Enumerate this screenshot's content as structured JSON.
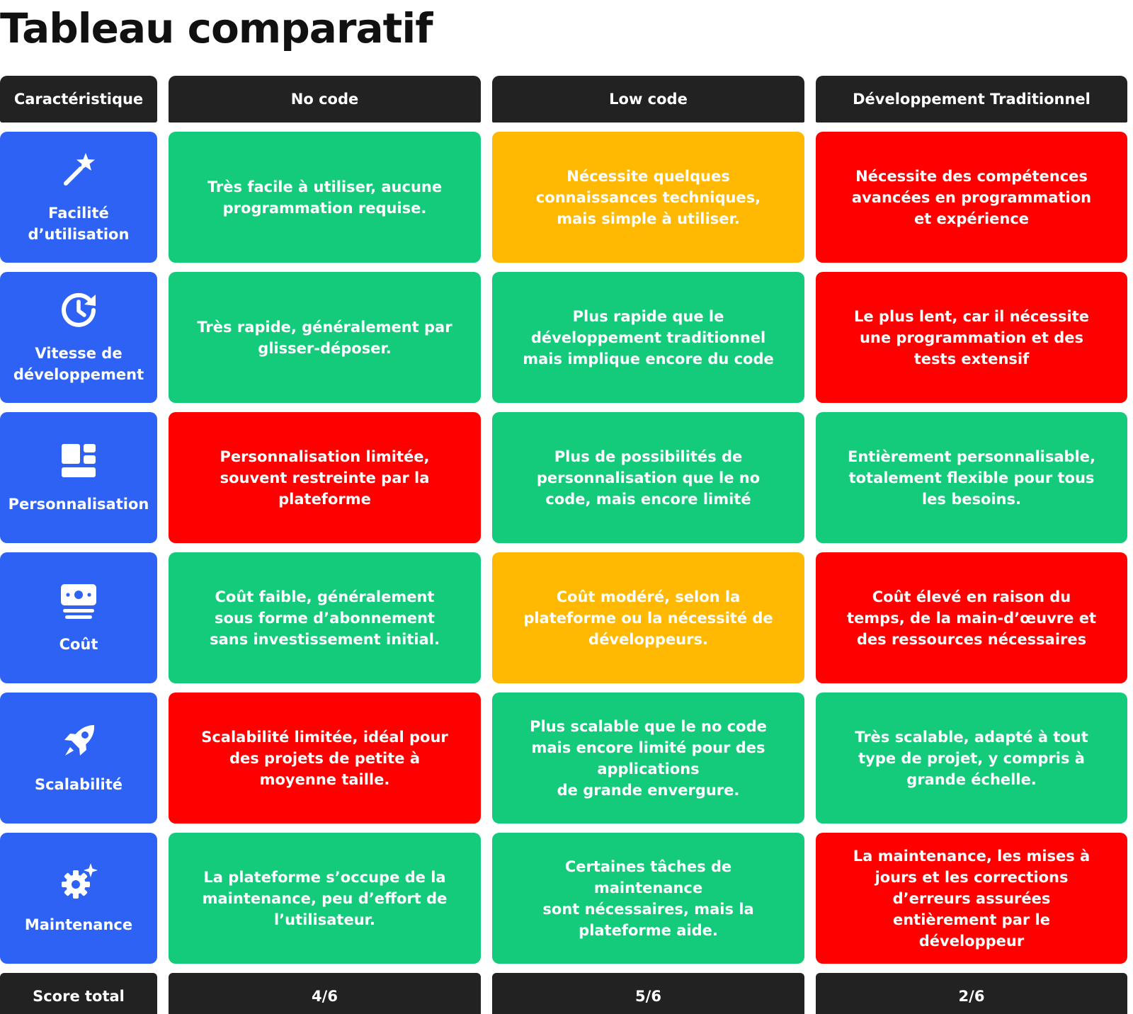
{
  "title": "Tableau comparatif",
  "headers": [
    "Caractéristique",
    "No code",
    "Low code",
    "Développement Traditionnel"
  ],
  "rows": [
    {
      "feature": "Facilité\nd’utilisation",
      "icon": "magic-wand-icon",
      "cells": [
        {
          "text": "Très facile à utiliser, aucune programmation requise.",
          "color": "#13cb7b"
        },
        {
          "text": "Nécessite quelques connaissances techniques, mais simple à utiliser.",
          "color": "#ffb902"
        },
        {
          "text": "Nécessite des compétences avancées en programmation et expérience",
          "color": "#ff0000"
        }
      ]
    },
    {
      "feature": "Vitesse de\ndéveloppement",
      "icon": "clock-refresh-icon",
      "cells": [
        {
          "text": "Très rapide, généralement par glisser-déposer.",
          "color": "#13cb7b"
        },
        {
          "text": "Plus rapide que le développement traditionnel mais implique encore du code",
          "color": "#13cb7b"
        },
        {
          "text": "Le plus lent, car il nécessite une programmation et des tests extensif",
          "color": "#ff0000"
        }
      ]
    },
    {
      "feature": "Personnalisation",
      "icon": "layout-icon",
      "cells": [
        {
          "text": "Personnalisation limitée, souvent restreinte par la plateforme",
          "color": "#ff0000"
        },
        {
          "text": "Plus de possibilités de personnalisation que le no code, mais encore limité",
          "color": "#13cb7b"
        },
        {
          "text": "Entièrement personnalisable, totalement flexible pour tous les besoins.",
          "color": "#13cb7b"
        }
      ]
    },
    {
      "feature": "Coût",
      "icon": "money-stack-icon",
      "cells": [
        {
          "text": "Coût faible, généralement sous forme d’abonnement sans investissement initial.",
          "color": "#13cb7b"
        },
        {
          "text": "Coût modéré, selon la plateforme ou la nécessité de développeurs.",
          "color": "#ffb902"
        },
        {
          "text": "Coût élevé en raison du temps, de la main-d’œuvre et des ressources nécessaires",
          "color": "#ff0000"
        }
      ]
    },
    {
      "feature": "Scalabilité",
      "icon": "rocket-icon",
      "cells": [
        {
          "text": "Scalabilité limitée, idéal pour des projets de petite à moyenne taille.",
          "color": "#ff0000"
        },
        {
          "text": "Plus scalable que le no code mais encore limité pour des applications\nde grande envergure.",
          "color": "#13cb7b"
        },
        {
          "text": "Très scalable, adapté à tout type de projet, y compris à grande échelle.",
          "color": "#13cb7b"
        }
      ]
    },
    {
      "feature": "Maintenance",
      "icon": "gear-sparkle-icon",
      "cells": [
        {
          "text": "La plateforme s’occupe de la maintenance, peu d’effort de l’utilisateur.",
          "color": "#13cb7b"
        },
        {
          "text": "Certaines tâches de maintenance\nsont nécessaires, mais la plateforme aide.",
          "color": "#13cb7b"
        },
        {
          "text": "La maintenance, les mises à jours et les corrections d’erreurs assurées entièrement par le développeur",
          "color": "#ff0000"
        }
      ]
    }
  ],
  "footer": {
    "label": "Score total",
    "scores": [
      "4/6",
      "5/6",
      "2/6"
    ]
  }
}
